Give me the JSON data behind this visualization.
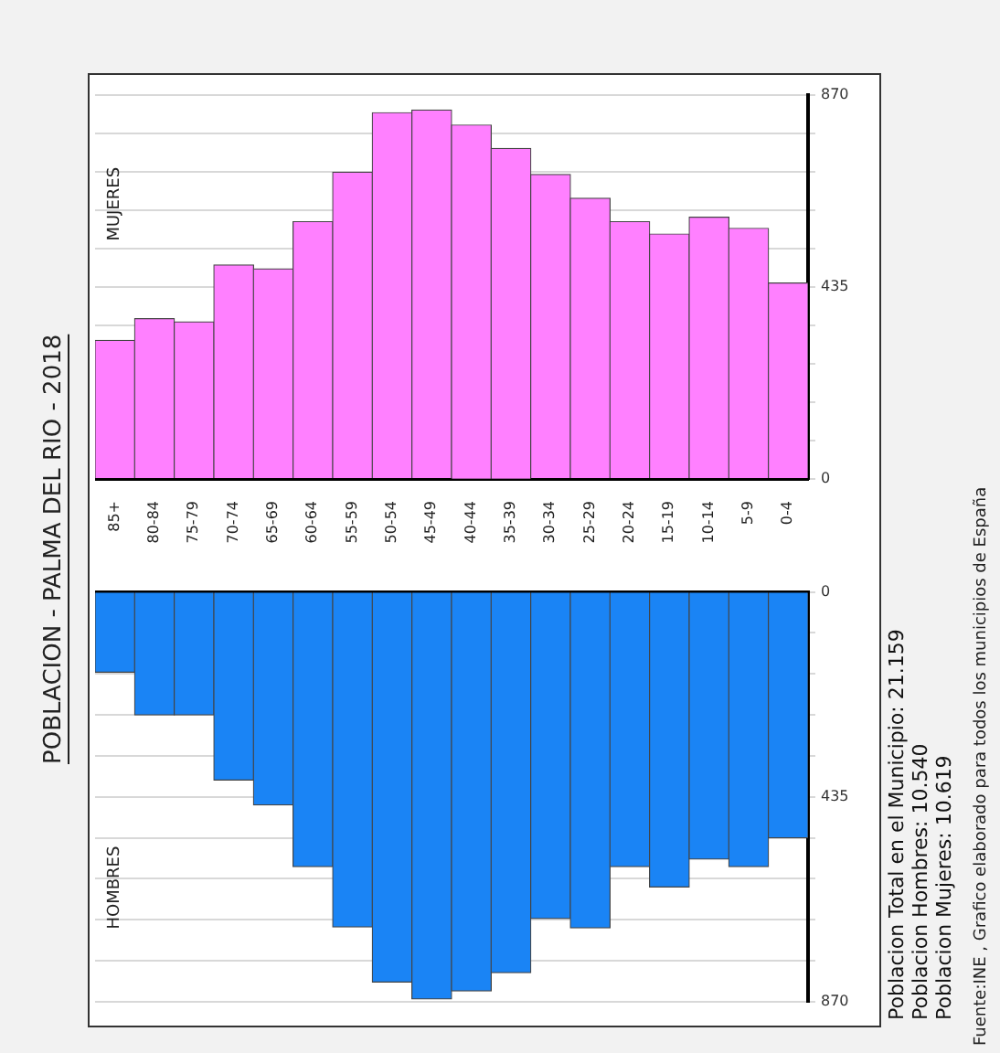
{
  "chart_data": [
    {
      "type": "bar",
      "title": "POBLACION - PALMA DEL RIO - 2018",
      "categories": [
        "85+",
        "80-84",
        "75-79",
        "70-74",
        "65-69",
        "60-64",
        "55-59",
        "50-54",
        "45-49",
        "40-44",
        "35-39",
        "30-34",
        "25-29",
        "20-24",
        "15-19",
        "10-14",
        "5-9",
        "0-4"
      ],
      "series": [
        {
          "name": "MUJERES",
          "color": "#ff80ff",
          "values": [
            314,
            363,
            356,
            485,
            476,
            583,
            695,
            830,
            836,
            802,
            749,
            690,
            636,
            583,
            555,
            593,
            568,
            444
          ]
        }
      ],
      "ylim": [
        0,
        870
      ],
      "yticks": [
        0,
        {
          "value": 87,
          "label": null
        },
        {
          "value": 174,
          "label": null
        },
        {
          "value": 261,
          "label": null
        },
        {
          "value": 348,
          "label": null
        },
        435,
        {
          "value": 522,
          "label": null
        },
        {
          "value": 609,
          "label": null
        },
        {
          "value": 696,
          "label": null
        },
        {
          "value": 783,
          "label": null
        },
        870
      ],
      "grid": "y",
      "legend": false
    },
    {
      "type": "bar",
      "categories": [
        null,
        null,
        null,
        null,
        null,
        null,
        null,
        null,
        null,
        null,
        null,
        null,
        null,
        null,
        null,
        null,
        null,
        null
      ],
      "series": [
        {
          "name": "HOMBRES",
          "color": "#1a84f5",
          "values": [
            170,
            261,
            261,
            399,
            452,
            583,
            711,
            828,
            864,
            847,
            808,
            693,
            713,
            583,
            626,
            567,
            583,
            522
          ]
        }
      ],
      "ylim": [
        870,
        0
      ],
      "yticks": [
        0,
        {
          "value": 87,
          "label": null
        },
        {
          "value": 174,
          "label": null
        },
        {
          "value": 261,
          "label": null
        },
        {
          "value": 348,
          "label": null
        },
        435,
        {
          "value": 522,
          "label": null
        },
        {
          "value": 609,
          "label": null
        },
        {
          "value": 696,
          "label": null
        },
        {
          "value": 783,
          "label": null
        },
        870
      ],
      "grid": "y",
      "legend": false,
      "tick_labels": "y",
      "annotations": [
        "Poblacion Total en el Municipio: 21.159",
        "Poblacion Hombres: 10.540",
        "Poblacion Mujeres: 10.619",
        "Fuente:INE , Grafico elaborado para todos los municipios de España"
      ]
    }
  ]
}
